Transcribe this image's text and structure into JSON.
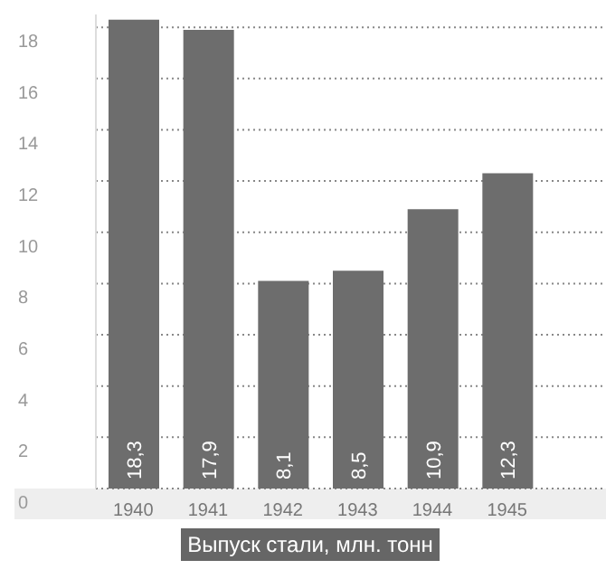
{
  "chart_data": {
    "type": "bar",
    "xlabel": "Выпуск стали, млн. тонн",
    "categories": [
      "1940",
      "1941",
      "1942",
      "1943",
      "1944",
      "1945"
    ],
    "values": [
      18.3,
      17.9,
      8.1,
      8.5,
      10.9,
      12.3
    ],
    "value_labels": [
      "18,3",
      "17,9",
      "8,1",
      "8,5",
      "10,9",
      "12,3"
    ],
    "color": "#6d6d6d",
    "ylim": [
      0,
      18.5
    ],
    "yticks": [
      0,
      2,
      4,
      6,
      8,
      10,
      12,
      14,
      16,
      18
    ],
    "grid": "y"
  }
}
